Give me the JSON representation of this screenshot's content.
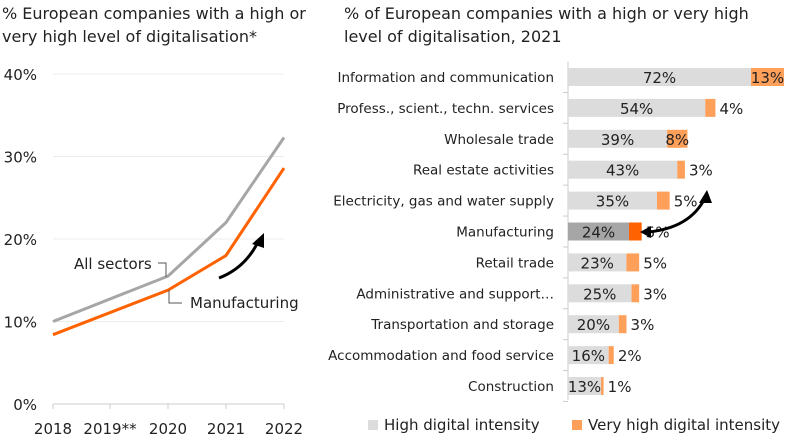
{
  "chart_data": [
    {
      "type": "line",
      "title": "% European companies with a high or very high level of digitalisation*",
      "categories": [
        "2018",
        "2019**",
        "2020",
        "2021",
        "2022"
      ],
      "ylim": [
        0,
        40
      ],
      "yticks": [
        "0%",
        "10%",
        "20%",
        "30%",
        "40%"
      ],
      "grid": true,
      "series": [
        {
          "name": "All sectors",
          "color": "#a6a6a6",
          "values": [
            10,
            null,
            15.5,
            22,
            32.3
          ]
        },
        {
          "name": "Manufacturing",
          "color": "#ff6200",
          "values": [
            8.4,
            null,
            13.8,
            18,
            28.6
          ]
        }
      ]
    },
    {
      "type": "bar",
      "orientation": "horizontal",
      "stacked": true,
      "title": "% of European companies with a high or very high level of digitalisation, 2021",
      "categories": [
        "Information and communication",
        "Profess., scient., techn. services",
        "Wholesale trade",
        "Real estate activities",
        "Electricity, gas and water supply",
        "Manufacturing",
        "Retail trade",
        "Administrative and support…",
        "Transportation and storage",
        "Accommodation and food service",
        "Construction"
      ],
      "highlight": "Manufacturing",
      "legend": "bottom",
      "series": [
        {
          "name": "High digital intensity",
          "color": "#dcdcdc",
          "highlight_color": "#a6a6a6",
          "values": [
            72,
            54,
            39,
            43,
            35,
            24,
            23,
            25,
            20,
            16,
            13
          ],
          "labels": [
            "72%",
            "54%",
            "39%",
            "43%",
            "35%",
            "24%",
            "23%",
            "25%",
            "20%",
            "16%",
            "13%"
          ]
        },
        {
          "name": "Very high digital intensity",
          "color": "#ffa05a",
          "highlight_color": "#ff6200",
          "values": [
            13,
            4,
            8,
            3,
            5,
            5,
            5,
            3,
            3,
            2,
            1
          ],
          "labels": [
            "13%",
            "4%",
            "8%",
            "3%",
            "5%",
            "5%",
            "5%",
            "3%",
            "3%",
            "2%",
            "1%"
          ]
        }
      ]
    }
  ]
}
